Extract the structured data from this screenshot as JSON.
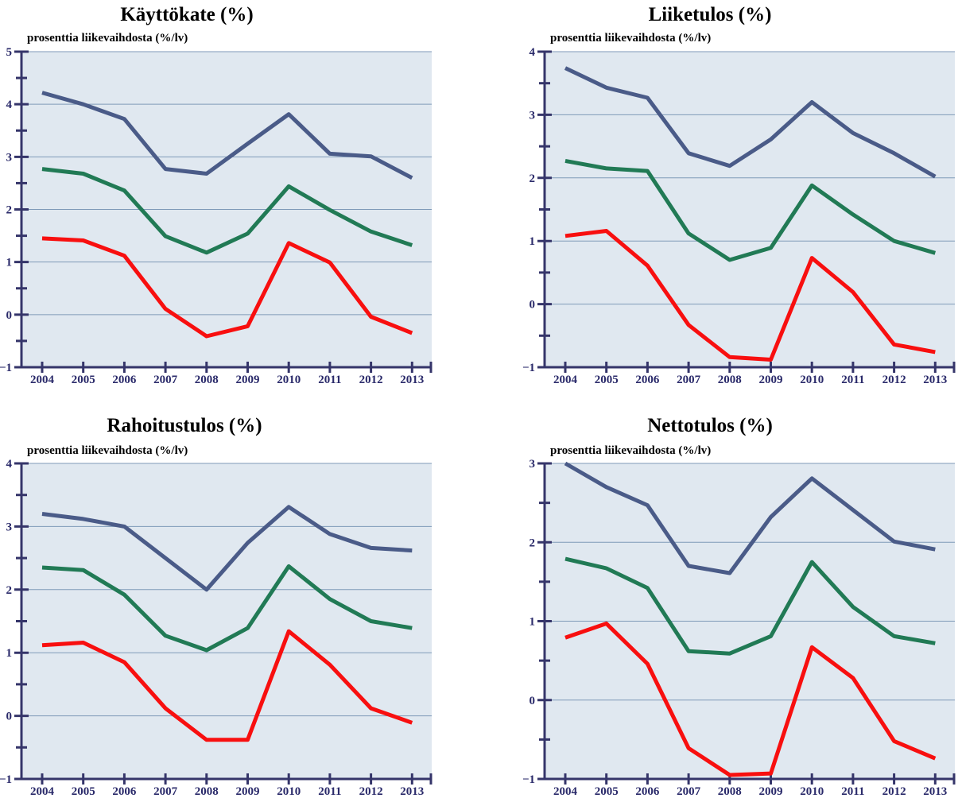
{
  "series_colors": [
    "#4a5b88",
    "#217a55",
    "#f80f0f"
  ],
  "plot_background": "#e0e8f0",
  "axis_color": "#35356a",
  "grid_color": "#7f9ab8",
  "chart_data": [
    {
      "type": "line",
      "title": "Käyttökate (%)",
      "ylabel": "prosenttia liikevaihdosta (%/lv)",
      "xlabel": "",
      "categories": [
        "2004",
        "2005",
        "2006",
        "2007",
        "2008",
        "2009",
        "2010",
        "2011",
        "2012",
        "2013"
      ],
      "ylim": [
        -1,
        5
      ],
      "yticks": [
        -1,
        0,
        1,
        2,
        3,
        4,
        5
      ],
      "ytick_labels": [
        "−1",
        "0",
        "1",
        "2",
        "3",
        "4",
        "5"
      ],
      "series": [
        {
          "name": "upper",
          "values": [
            4.22,
            4.0,
            3.72,
            2.77,
            2.68,
            3.25,
            3.81,
            3.06,
            3.01,
            2.6
          ]
        },
        {
          "name": "middle",
          "values": [
            2.77,
            2.68,
            2.36,
            1.49,
            1.18,
            1.54,
            2.44,
            1.99,
            1.58,
            1.32
          ]
        },
        {
          "name": "lower",
          "values": [
            1.45,
            1.41,
            1.12,
            0.11,
            -0.41,
            -0.22,
            1.36,
            0.99,
            -0.04,
            -0.35
          ]
        }
      ]
    },
    {
      "type": "line",
      "title": "Liiketulos (%)",
      "ylabel": "prosenttia liikevaihdosta (%/lv)",
      "xlabel": "",
      "categories": [
        "2004",
        "2005",
        "2006",
        "2007",
        "2008",
        "2009",
        "2010",
        "2011",
        "2012",
        "2013"
      ],
      "ylim": [
        -1,
        4
      ],
      "yticks": [
        -1,
        0,
        1,
        2,
        3,
        4
      ],
      "ytick_labels": [
        "−1",
        "0",
        "1",
        "2",
        "3",
        "4"
      ],
      "series": [
        {
          "name": "upper",
          "values": [
            3.74,
            3.43,
            3.27,
            2.39,
            2.19,
            2.61,
            3.2,
            2.71,
            2.39,
            2.02
          ]
        },
        {
          "name": "middle",
          "values": [
            2.27,
            2.15,
            2.11,
            1.12,
            0.7,
            0.89,
            1.88,
            1.42,
            1.0,
            0.81
          ]
        },
        {
          "name": "lower",
          "values": [
            1.08,
            1.16,
            0.61,
            -0.33,
            -0.84,
            -0.88,
            0.73,
            0.19,
            -0.64,
            -0.76
          ]
        }
      ]
    },
    {
      "type": "line",
      "title": "Rahoitustulos (%)",
      "ylabel": "prosenttia liikevaihdosta (%/lv)",
      "xlabel": "",
      "categories": [
        "2004",
        "2005",
        "2006",
        "2007",
        "2008",
        "2009",
        "2010",
        "2011",
        "2012",
        "2013"
      ],
      "ylim": [
        -1,
        4
      ],
      "yticks": [
        -1,
        0,
        1,
        2,
        3,
        4
      ],
      "ytick_labels": [
        "−1",
        "0",
        "1",
        "2",
        "3",
        "4"
      ],
      "series": [
        {
          "name": "upper",
          "values": [
            3.2,
            3.12,
            3.0,
            2.5,
            2.0,
            2.74,
            3.31,
            2.88,
            2.66,
            2.62
          ]
        },
        {
          "name": "middle",
          "values": [
            2.35,
            2.31,
            1.92,
            1.27,
            1.04,
            1.39,
            2.37,
            1.85,
            1.5,
            1.39
          ]
        },
        {
          "name": "lower",
          "values": [
            1.12,
            1.16,
            0.85,
            0.12,
            -0.38,
            -0.38,
            1.34,
            0.81,
            0.12,
            -0.11
          ]
        }
      ]
    },
    {
      "type": "line",
      "title": "Nettotulos (%)",
      "ylabel": "prosenttia liikevaihdosta (%/lv)",
      "xlabel": "",
      "categories": [
        "2004",
        "2005",
        "2006",
        "2007",
        "2008",
        "2009",
        "2010",
        "2011",
        "2012",
        "2013"
      ],
      "ylim": [
        -1,
        3
      ],
      "yticks": [
        -1,
        0,
        1,
        2,
        3
      ],
      "ytick_labels": [
        "−1",
        "0",
        "1",
        "2",
        "3"
      ],
      "series": [
        {
          "name": "upper",
          "values": [
            3.0,
            2.7,
            2.47,
            1.7,
            1.61,
            2.32,
            2.81,
            2.41,
            2.01,
            1.91
          ]
        },
        {
          "name": "middle",
          "values": [
            1.79,
            1.67,
            1.42,
            0.62,
            0.59,
            0.81,
            1.75,
            1.18,
            0.81,
            0.72
          ]
        },
        {
          "name": "lower",
          "values": [
            0.79,
            0.97,
            0.46,
            -0.61,
            -0.95,
            -0.93,
            0.67,
            0.28,
            -0.52,
            -0.74
          ]
        }
      ]
    }
  ]
}
